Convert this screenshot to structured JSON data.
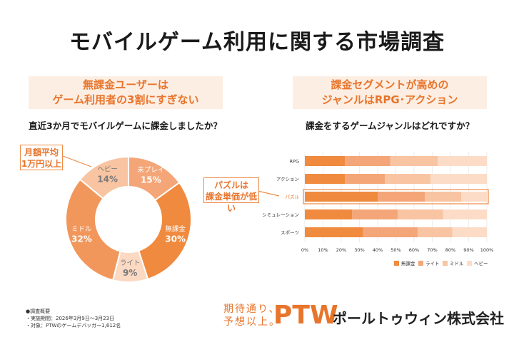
{
  "page": {
    "title": "モバイルゲーム利用に関する市場調査"
  },
  "left_panel": {
    "banner_line1": "無課金ユーザーは",
    "banner_line2": "ゲーム利用者の3割にすぎない",
    "question": "直近3か月でモバイルゲームに課金しましたか？",
    "callout_line1": "月額平均",
    "callout_line2": "1万円以上"
  },
  "right_panel": {
    "banner_line1": "課金セグメントが高めの",
    "banner_line2": "ジャンルはRPG･アクション",
    "question": "課金をするゲームジャンルはどれですか？",
    "callout_line1": "パズルは",
    "callout_line2": "課金単価が低い"
  },
  "chart_data": [
    {
      "type": "pie",
      "title": "直近3か月でモバイルゲームに課金しましたか？",
      "style": "donut",
      "slices": [
        {
          "label": "未プレイ",
          "value": 15,
          "value_label": "15%",
          "color": "#f4a679"
        },
        {
          "label": "無課金",
          "value": 30,
          "value_label": "30%",
          "color": "#f08a3e"
        },
        {
          "label": "ライト",
          "value": 9,
          "value_label": "9%",
          "color": "#fbd9c3"
        },
        {
          "label": "ミドル",
          "value": 32,
          "value_label": "32%",
          "color": "#f2975c"
        },
        {
          "label": "ヘビー",
          "value": 14,
          "value_label": "14%",
          "color": "#f8c4a2"
        }
      ]
    },
    {
      "type": "bar",
      "orientation": "horizontal",
      "stacked": true,
      "title": "課金をするゲームジャンルはどれですか？",
      "categories": [
        "RPG",
        "アクション",
        "パズル",
        "シミュレーション",
        "スポーツ"
      ],
      "series": [
        {
          "name": "無課金",
          "color": "#f08a3e",
          "values": [
            22,
            22,
            40,
            26,
            32
          ]
        },
        {
          "name": "ライト",
          "color": "#f4a679",
          "values": [
            25,
            22,
            26,
            25,
            30
          ]
        },
        {
          "name": "ミドル",
          "color": "#f8c4a2",
          "values": [
            26,
            25,
            20,
            25,
            19
          ]
        },
        {
          "name": "ヘビー",
          "color": "#fcdcc7",
          "values": [
            27,
            31,
            14,
            24,
            19
          ]
        }
      ],
      "highlight_category": "パズル",
      "xlim": [
        0,
        100
      ],
      "x_ticks": [
        "0%",
        "10%",
        "20%",
        "30%",
        "40%",
        "50%",
        "60%",
        "70%",
        "80%",
        "90%",
        "100%"
      ],
      "legend": [
        "無課金",
        "ライト",
        "ミドル",
        "ヘビー"
      ]
    }
  ],
  "notes": {
    "heading": "●調査概要",
    "line1": "・実施期間：2026年3月9日〜3月23日",
    "line2": "・対象：PTWのゲームデバッガー1,612名"
  },
  "footer": {
    "tagline_line1": "期待通り、",
    "tagline_line2": "予想以上。",
    "logo": "PTW",
    "company": "ポールトゥウィン株式会社"
  }
}
